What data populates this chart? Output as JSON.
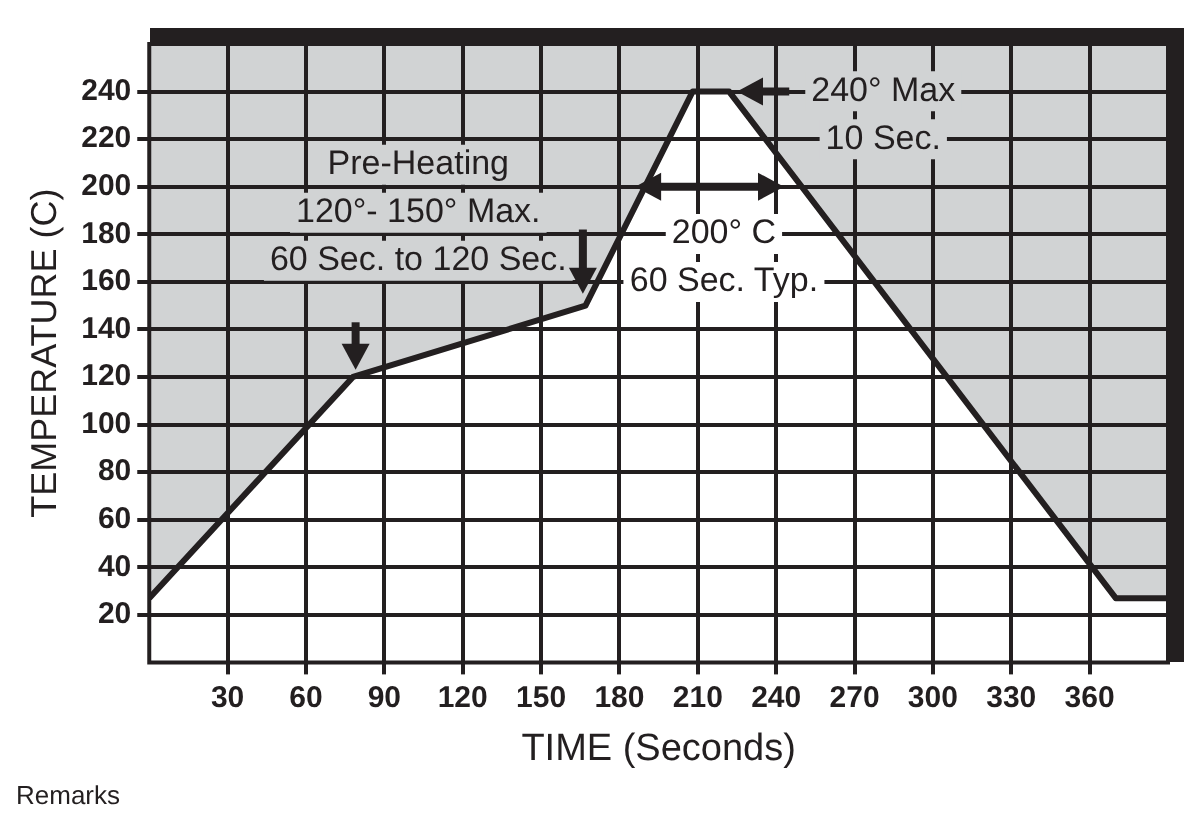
{
  "chart_data": {
    "type": "area",
    "xlabel": "TIME (Seconds)",
    "ylabel": "TEMPERATURE (C)",
    "x": [
      0,
      78,
      167,
      208,
      222,
      370,
      390
    ],
    "series": [
      {
        "color": "#231f20",
        "values": [
          27,
          120,
          150,
          240,
          240,
          27,
          27
        ]
      }
    ],
    "xlim": [
      0,
      390
    ],
    "xticks": [
      30,
      60,
      90,
      120,
      150,
      180,
      210,
      240,
      270,
      300,
      330,
      360
    ],
    "ylim": [
      0,
      260
    ],
    "yticks": [
      20,
      40,
      60,
      80,
      100,
      120,
      140,
      160,
      180,
      200,
      220,
      240
    ],
    "grid": true,
    "legend": false,
    "marker": "none",
    "line_style": "solid",
    "annotations": [
      "Pre-Heating\n120°- 150° Max.\n60 Sec. to 120 Sec.",
      "240° Max\n10 Sec.",
      "200° C\n60 Sec. Typ.",
      "Remarks"
    ]
  }
}
